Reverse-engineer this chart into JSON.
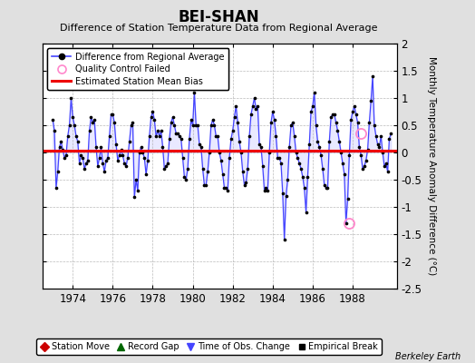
{
  "title": "BEI-SHAN",
  "subtitle": "Difference of Station Temperature Data from Regional Average",
  "ylabel": "Monthly Temperature Anomaly Difference (°C)",
  "bias": 0.03,
  "ylim": [
    -2.5,
    2.0
  ],
  "xlim": [
    1972.5,
    1990.2
  ],
  "xticks": [
    1974,
    1976,
    1978,
    1980,
    1982,
    1984,
    1986,
    1988
  ],
  "yticks_right": [
    -2.5,
    -2.0,
    -1.5,
    -1.0,
    -0.5,
    0.0,
    0.5,
    1.0,
    1.5,
    2.0
  ],
  "yticks_left": [
    -2.0,
    -1.5,
    -1.0,
    -0.5,
    0.0,
    0.5,
    1.0,
    1.5,
    2.0
  ],
  "bg_color": "#e0e0e0",
  "plot_bg_color": "#ffffff",
  "line_color": "#4444ff",
  "line_fill_color": "#aaaaff",
  "dot_color": "#000000",
  "bias_color": "#ee0000",
  "qc_color": "#ff88cc",
  "berkeley_earth_text": "Berkeley Earth",
  "data": [
    1973.0,
    0.6,
    1973.083,
    0.4,
    1973.167,
    -0.65,
    1973.25,
    -0.35,
    1973.333,
    0.1,
    1973.417,
    0.2,
    1973.5,
    0.05,
    1973.583,
    -0.1,
    1973.667,
    -0.05,
    1973.75,
    0.3,
    1973.833,
    0.5,
    1973.917,
    1.0,
    1974.0,
    0.65,
    1974.083,
    0.5,
    1974.167,
    0.3,
    1974.25,
    0.2,
    1974.333,
    -0.2,
    1974.417,
    -0.05,
    1974.5,
    -0.1,
    1974.583,
    -0.3,
    1974.667,
    -0.2,
    1974.75,
    -0.15,
    1974.833,
    0.4,
    1974.917,
    0.65,
    1975.0,
    0.55,
    1975.083,
    0.6,
    1975.167,
    0.1,
    1975.25,
    -0.25,
    1975.333,
    -0.1,
    1975.417,
    0.1,
    1975.5,
    -0.2,
    1975.583,
    -0.35,
    1975.667,
    -0.15,
    1975.75,
    -0.1,
    1975.833,
    0.3,
    1975.917,
    0.7,
    1976.0,
    0.7,
    1976.083,
    0.55,
    1976.167,
    0.15,
    1976.25,
    -0.15,
    1976.333,
    -0.05,
    1976.417,
    0.05,
    1976.5,
    -0.05,
    1976.583,
    -0.2,
    1976.667,
    -0.25,
    1976.75,
    -0.1,
    1976.833,
    0.2,
    1976.917,
    0.5,
    1977.0,
    0.55,
    1977.083,
    -0.82,
    1977.167,
    -0.5,
    1977.25,
    -0.7,
    1977.333,
    0.0,
    1977.417,
    0.1,
    1977.5,
    0.0,
    1977.583,
    -0.1,
    1977.667,
    -0.4,
    1977.75,
    -0.15,
    1977.833,
    0.3,
    1977.917,
    0.65,
    1978.0,
    0.75,
    1978.083,
    0.6,
    1978.167,
    0.3,
    1978.25,
    0.4,
    1978.333,
    0.3,
    1978.417,
    0.4,
    1978.5,
    0.1,
    1978.583,
    -0.3,
    1978.667,
    -0.25,
    1978.75,
    -0.2,
    1978.833,
    0.25,
    1978.917,
    0.55,
    1979.0,
    0.65,
    1979.083,
    0.5,
    1979.167,
    0.35,
    1979.25,
    0.35,
    1979.333,
    0.3,
    1979.417,
    0.25,
    1979.5,
    -0.1,
    1979.583,
    -0.45,
    1979.667,
    -0.5,
    1979.75,
    -0.3,
    1979.833,
    0.25,
    1979.917,
    0.6,
    1980.0,
    0.5,
    1980.083,
    1.1,
    1980.167,
    0.5,
    1980.25,
    0.5,
    1980.333,
    0.15,
    1980.417,
    0.1,
    1980.5,
    -0.3,
    1980.583,
    -0.6,
    1980.667,
    -0.6,
    1980.75,
    -0.35,
    1980.833,
    0.0,
    1980.917,
    0.5,
    1981.0,
    0.6,
    1981.083,
    0.5,
    1981.167,
    0.3,
    1981.25,
    0.3,
    1981.333,
    0.0,
    1981.417,
    -0.15,
    1981.5,
    -0.4,
    1981.583,
    -0.65,
    1981.667,
    -0.65,
    1981.75,
    -0.7,
    1981.833,
    -0.1,
    1981.917,
    0.25,
    1982.0,
    0.4,
    1982.083,
    0.65,
    1982.167,
    0.85,
    1982.25,
    0.55,
    1982.333,
    0.2,
    1982.417,
    0.0,
    1982.5,
    -0.35,
    1982.583,
    -0.6,
    1982.667,
    -0.55,
    1982.75,
    -0.3,
    1982.833,
    0.3,
    1982.917,
    0.7,
    1983.0,
    0.85,
    1983.083,
    1.0,
    1983.167,
    0.8,
    1983.25,
    0.85,
    1983.333,
    0.15,
    1983.417,
    0.1,
    1983.5,
    -0.25,
    1983.583,
    -0.7,
    1983.667,
    -0.65,
    1983.75,
    -0.7,
    1983.833,
    0.0,
    1983.917,
    0.55,
    1984.0,
    0.75,
    1984.083,
    0.6,
    1984.167,
    0.3,
    1984.25,
    -0.1,
    1984.333,
    -0.1,
    1984.417,
    -0.2,
    1984.5,
    -0.75,
    1984.583,
    -1.6,
    1984.667,
    -0.8,
    1984.75,
    -0.5,
    1984.833,
    0.1,
    1984.917,
    0.5,
    1985.0,
    0.55,
    1985.083,
    0.3,
    1985.167,
    0.0,
    1985.25,
    -0.1,
    1985.333,
    -0.2,
    1985.417,
    -0.3,
    1985.5,
    -0.45,
    1985.583,
    -0.65,
    1985.667,
    -1.1,
    1985.75,
    -0.45,
    1985.833,
    0.15,
    1985.917,
    0.75,
    1986.0,
    0.85,
    1986.083,
    1.1,
    1986.167,
    0.5,
    1986.25,
    0.2,
    1986.333,
    0.1,
    1986.417,
    -0.05,
    1986.5,
    -0.3,
    1986.583,
    -0.6,
    1986.667,
    -0.65,
    1986.75,
    -0.65,
    1986.833,
    0.2,
    1986.917,
    0.65,
    1987.0,
    0.7,
    1987.083,
    0.7,
    1987.167,
    0.55,
    1987.25,
    0.4,
    1987.333,
    0.2,
    1987.417,
    0.0,
    1987.5,
    -0.2,
    1987.583,
    -0.4,
    1987.667,
    -1.3,
    1987.75,
    -0.85,
    1987.833,
    -0.05,
    1987.917,
    0.6,
    1988.0,
    0.75,
    1988.083,
    0.85,
    1988.167,
    0.7,
    1988.25,
    0.55,
    1988.333,
    0.1,
    1988.417,
    -0.05,
    1988.5,
    -0.3,
    1988.583,
    -0.25,
    1988.667,
    -0.15,
    1988.75,
    0.05,
    1988.833,
    0.55,
    1988.917,
    0.95,
    1989.0,
    1.4,
    1989.083,
    0.5,
    1989.167,
    0.3,
    1989.25,
    0.15,
    1989.333,
    0.1,
    1989.417,
    0.3,
    1989.5,
    0.0,
    1989.583,
    -0.25,
    1989.667,
    -0.2,
    1989.75,
    -0.35,
    1989.833,
    0.25,
    1989.917,
    0.35
  ],
  "qc_points": [
    [
      1988.417,
      0.35
    ],
    [
      1987.833,
      -1.3
    ]
  ]
}
